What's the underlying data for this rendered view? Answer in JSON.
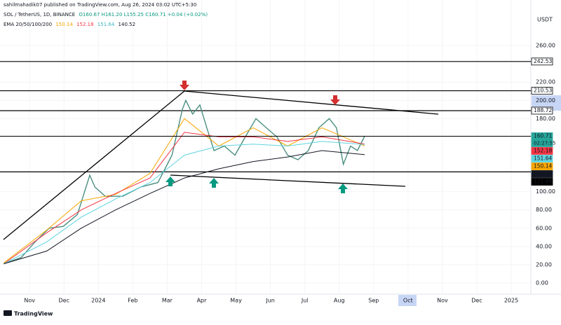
{
  "chart_data": {
    "type": "line",
    "header": {
      "publisher": "sahilmahadik07 published on TradingView.com, Aug 26, 2024 03:02 UTC+5:30",
      "symbol": "SOL / TetherUS, 1D, BINANCE",
      "ohlc": "O160.67 H161.20 L155.25 C160.71 +0.04 (+0.02%)",
      "ema_label": "EMA 20/50/100/200"
    },
    "currency": "USDT",
    "countdown": "02:27:55",
    "brand": "TradingView",
    "xlim": [
      -0.86,
      14.57
    ],
    "xticks": [
      {
        "value": 0,
        "label": "Nov"
      },
      {
        "value": 1,
        "label": "Dec"
      },
      {
        "value": 2,
        "label": "2024"
      },
      {
        "value": 3,
        "label": "Feb"
      },
      {
        "value": 4,
        "label": "Mar"
      },
      {
        "value": 5,
        "label": "Apr"
      },
      {
        "value": 6,
        "label": "May"
      },
      {
        "value": 7,
        "label": "Jun"
      },
      {
        "value": 8,
        "label": "Jul"
      },
      {
        "value": 9,
        "label": "Aug"
      },
      {
        "value": 10,
        "label": "Sep"
      },
      {
        "value": 11,
        "label": "Oct"
      },
      {
        "value": 12,
        "label": "Nov"
      },
      {
        "value": 13,
        "label": "Dec"
      },
      {
        "value": 14,
        "label": "2025"
      }
    ],
    "ylim": [
      -12.27,
      309.9
    ],
    "yticks": [
      {
        "value": 0,
        "label": "0.00"
      },
      {
        "value": 20,
        "label": "20.00"
      },
      {
        "value": 40,
        "label": "40.00"
      },
      {
        "value": 60,
        "label": "60.00"
      },
      {
        "value": 80,
        "label": "80.00"
      },
      {
        "value": 100,
        "label": "100.00"
      },
      {
        "value": 180,
        "label": "180.00"
      },
      {
        "value": 200,
        "label": "200.00"
      },
      {
        "value": 220,
        "label": "220.00"
      },
      {
        "value": 260,
        "label": "260.00"
      }
    ],
    "levels": [
      242.53,
      210.53,
      188.72,
      121.68
    ],
    "level_color": "#000000",
    "series": [
      {
        "color": "#4a8f80",
        "x": [
          -0.75,
          -0.24,
          0.16,
          0.57,
          0.98,
          1.39,
          1.75,
          1.9,
          2.2,
          2.71,
          3.22,
          3.73,
          4.14,
          4.44,
          4.54,
          4.74,
          4.95,
          5.15,
          5.36,
          5.66,
          5.97,
          6.27,
          6.58,
          6.88,
          7.19,
          7.5,
          7.8,
          8.1,
          8.41,
          8.71,
          8.92,
          9.12,
          9.33,
          9.53,
          9.74
        ],
        "values": [
          21,
          28,
          45,
          60,
          62,
          75,
          118,
          105,
          95,
          95,
          105,
          110,
          140,
          190,
          200,
          185,
          195,
          170,
          145,
          150,
          140,
          160,
          180,
          170,
          160,
          140,
          135,
          145,
          170,
          180,
          170,
          130,
          150,
          145,
          160.71
        ]
      },
      {
        "color": "#f7a600",
        "x": [
          -0.75,
          0.5,
          1.5,
          2.5,
          3.5,
          4.5,
          5.5,
          6.5,
          7.5,
          8.5,
          9.74
        ],
        "values": [
          22,
          58,
          90,
          97,
          120,
          180,
          150,
          170,
          150,
          170,
          150.14
        ]
      },
      {
        "color": "#f23645",
        "x": [
          -0.75,
          0.5,
          1.5,
          2.5,
          3.5,
          4.5,
          5.5,
          6.5,
          7.5,
          8.5,
          9.74
        ],
        "values": [
          21,
          55,
          80,
          98,
          115,
          165,
          160,
          160,
          155,
          160,
          152.18
        ]
      },
      {
        "color": "#5fd4e0",
        "x": [
          -0.75,
          0.5,
          1.5,
          2.5,
          3.5,
          4.5,
          5.5,
          6.5,
          7.5,
          8.5,
          9.74
        ],
        "values": [
          21,
          45,
          72,
          92,
          110,
          140,
          150,
          152,
          150,
          155,
          151.64
        ]
      },
      {
        "color": "#131722",
        "x": [
          -0.75,
          0.5,
          1.5,
          2.5,
          3.5,
          4.5,
          5.5,
          6.5,
          7.5,
          8.5,
          9.74
        ],
        "values": [
          21,
          35,
          60,
          80,
          98,
          115,
          125,
          133,
          138,
          145,
          140.52
        ]
      }
    ]
  }
}
